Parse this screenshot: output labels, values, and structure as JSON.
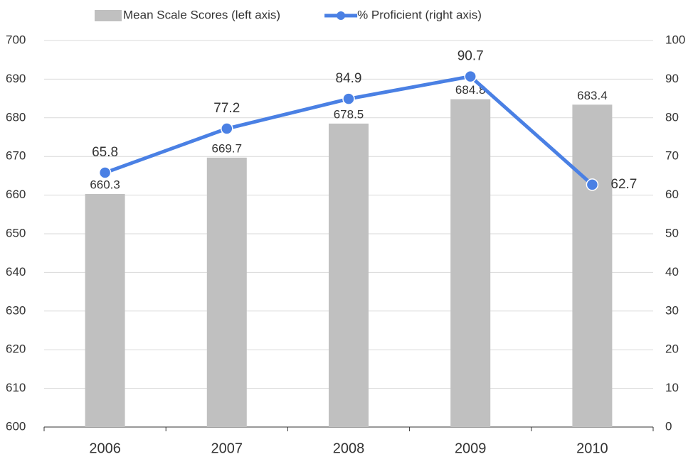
{
  "chart_data": {
    "type": "combo",
    "categories": [
      "2006",
      "2007",
      "2008",
      "2009",
      "2010"
    ],
    "series": [
      {
        "name": "Mean Scale Scores (left axis)",
        "type": "bar",
        "color": "#c0c0c0",
        "values": [
          660.3,
          669.7,
          678.5,
          684.8,
          683.4
        ]
      },
      {
        "name": "% Proficient (right axis)",
        "type": "line",
        "axis": "y2",
        "color": "#4a80e4",
        "values": [
          65.8,
          77.2,
          84.9,
          90.7,
          62.7
        ]
      }
    ],
    "ylim": [
      600,
      700
    ],
    "yticks": [
      600,
      610,
      620,
      630,
      640,
      650,
      660,
      670,
      680,
      690,
      700
    ],
    "y2lim": [
      0,
      100
    ],
    "y2ticks": [
      0,
      10,
      20,
      30,
      40,
      50,
      60,
      70,
      80,
      90,
      100
    ],
    "grid": true,
    "legend": "top"
  }
}
